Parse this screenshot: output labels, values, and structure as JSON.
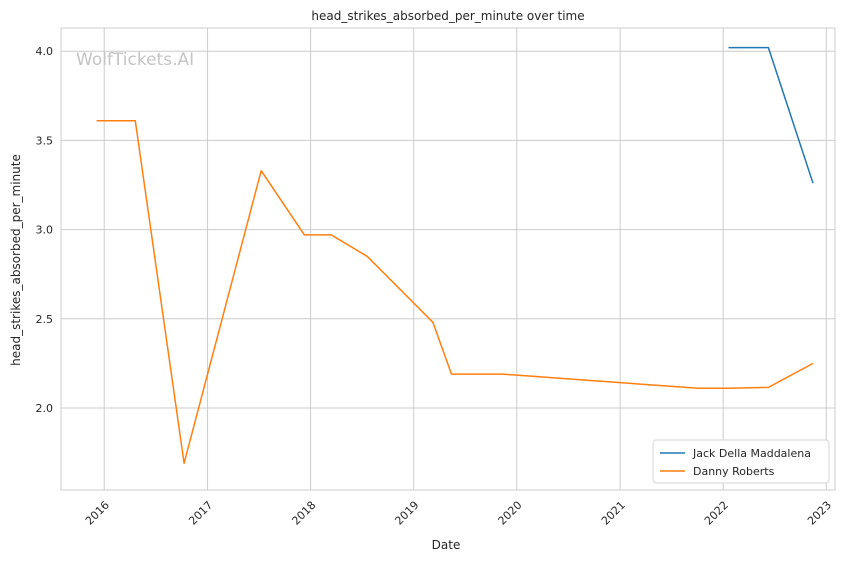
{
  "chart_data": {
    "type": "line",
    "title": "head_strikes_absorbed_per_minute over time",
    "xlabel": "Date",
    "ylabel": "head_strikes_absorbed_per_minute",
    "watermark": "WolfTickets.AI",
    "xlim": [
      "2015-08-01",
      "2023-02-01"
    ],
    "ylim": [
      1.54,
      4.13
    ],
    "x_ticks": [
      "2016-01-01",
      "2017-01-01",
      "2018-01-01",
      "2019-01-01",
      "2020-01-01",
      "2021-01-01",
      "2022-01-01",
      "2023-01-01"
    ],
    "x_tick_labels": [
      "2016",
      "2017",
      "2018",
      "2019",
      "2020",
      "2021",
      "2022",
      "2023"
    ],
    "y_ticks": [
      2.0,
      2.5,
      3.0,
      3.5,
      4.0
    ],
    "y_tick_labels": [
      "2.0",
      "2.5",
      "3.0",
      "3.5",
      "4.0"
    ],
    "grid": true,
    "legend_position": "lower-right",
    "series": [
      {
        "name": "Jack Della Maddalena",
        "color": "#1f77b4",
        "x": [
          "2022-01-20",
          "2022-06-10",
          "2022-11-15"
        ],
        "y": [
          4.02,
          4.02,
          3.26
        ]
      },
      {
        "name": "Danny Roberts",
        "color": "#ff7f0e",
        "x": [
          "2015-12-05",
          "2016-04-20",
          "2016-10-10",
          "2017-07-10",
          "2017-12-10",
          "2018-03-15",
          "2018-07-20",
          "2019-03-10",
          "2019-05-15",
          "2019-11-10",
          "2021-10-05",
          "2022-01-15",
          "2022-06-10",
          "2022-11-15"
        ],
        "y": [
          3.61,
          3.61,
          1.69,
          3.33,
          2.97,
          2.97,
          2.85,
          2.48,
          2.19,
          2.19,
          2.11,
          2.11,
          2.115,
          2.25
        ]
      }
    ]
  }
}
